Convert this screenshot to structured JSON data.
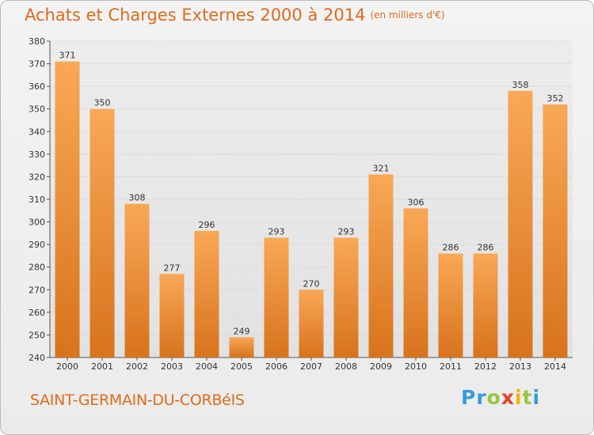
{
  "header": {
    "title": "Achats et Charges Externes 2000 à 2014",
    "unit": "(en milliers d'€)"
  },
  "footer": {
    "commune": "SAINT-GERMAIN-DU-CORBéIS",
    "logo_letters": [
      {
        "ch": "P",
        "color": "#3a9ad9"
      },
      {
        "ch": "r",
        "color": "#3a9ad9"
      },
      {
        "ch": "o",
        "color": "#9bc53d"
      },
      {
        "ch": "x",
        "color": "#e8412c"
      },
      {
        "ch": "i",
        "color": "#f4b400"
      },
      {
        "ch": "t",
        "color": "#9bc53d"
      },
      {
        "ch": "i",
        "color": "#3a9ad9"
      }
    ]
  },
  "colors": {
    "accent": "#e06a1b",
    "bar_light": "#f9a856",
    "bar_dark": "#d8731c",
    "grid": "#d6d6d6"
  },
  "chart_data": {
    "type": "bar",
    "title": "Achats et Charges Externes 2000 à 2014",
    "subtitle": "(en milliers d'€)",
    "categories": [
      "2000",
      "2001",
      "2002",
      "2003",
      "2004",
      "2005",
      "2006",
      "2007",
      "2008",
      "2009",
      "2010",
      "2011",
      "2012",
      "2013",
      "2014"
    ],
    "values": [
      371,
      350,
      308,
      277,
      296,
      249,
      293,
      270,
      293,
      321,
      306,
      286,
      286,
      358,
      352
    ],
    "ylim": [
      240,
      380
    ],
    "yticks": [
      240,
      250,
      260,
      270,
      280,
      290,
      300,
      310,
      320,
      330,
      340,
      350,
      360,
      370,
      380
    ],
    "grid": true,
    "xlabel": "",
    "ylabel": ""
  }
}
